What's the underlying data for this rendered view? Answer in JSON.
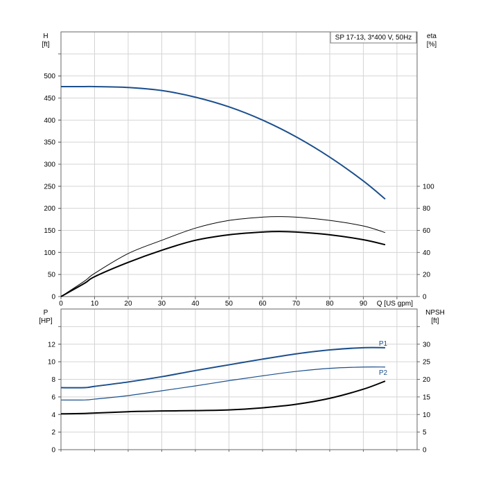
{
  "chart_data": [
    {
      "type": "line",
      "title": "SP 17-13, 3*400 V, 50Hz",
      "xlabel": "Q [US gpm]",
      "ylabel": "H",
      "ylabel_unit": "[ft]",
      "y2label": "eta",
      "y2label_unit": "[%]",
      "xlim": [
        0,
        106
      ],
      "ylim": [
        0,
        600
      ],
      "y2lim": [
        0,
        240
      ],
      "x_ticks": [
        0,
        10,
        20,
        30,
        40,
        50,
        60,
        70,
        80,
        90
      ],
      "y_ticks": [
        0,
        50,
        100,
        150,
        200,
        250,
        300,
        350,
        400,
        450,
        500
      ],
      "y2_ticks": [
        0,
        20,
        40,
        60,
        80,
        100
      ],
      "grid": true,
      "colors": {
        "head": "#1b4f8c",
        "eta": "#000000"
      },
      "series": [
        {
          "axis": "y",
          "x": [
            0,
            7,
            10,
            20,
            30,
            40,
            50,
            60,
            70,
            80,
            90,
            96.5
          ],
          "y": [
            476,
            476,
            476,
            474,
            467,
            452,
            430,
            400,
            362,
            316,
            262,
            221
          ]
        },
        {
          "axis": "y2",
          "x": [
            0,
            7,
            10,
            20,
            30,
            40,
            50,
            60,
            65,
            70,
            80,
            90,
            96.5
          ],
          "y": [
            0,
            14,
            21,
            39,
            51,
            62,
            69,
            72,
            72.5,
            72,
            69,
            64,
            58
          ]
        },
        {
          "axis": "y2",
          "x": [
            0,
            7,
            10,
            20,
            30,
            40,
            50,
            60,
            65,
            70,
            80,
            90,
            96.5
          ],
          "y": [
            0,
            12,
            18,
            31,
            42,
            51,
            56,
            58.5,
            59,
            58.5,
            56,
            51.5,
            47
          ]
        }
      ]
    },
    {
      "type": "line",
      "ylabel": "P",
      "ylabel_unit": "[HP]",
      "y2label": "NPSH",
      "y2label_unit": "[ft]",
      "xlim": [
        0,
        106
      ],
      "ylim": [
        0,
        16
      ],
      "y2lim": [
        0,
        40
      ],
      "y_ticks": [
        0,
        2,
        4,
        6,
        8,
        10,
        12
      ],
      "y2_ticks": [
        0,
        5,
        10,
        15,
        20,
        25,
        30
      ],
      "grid": true,
      "colors": {
        "power": "#1b4f8c",
        "npsh": "#000000"
      },
      "series": [
        {
          "name": "P1",
          "axis": "y",
          "x": [
            0,
            7,
            10,
            20,
            30,
            40,
            50,
            60,
            70,
            80,
            90,
            96.5
          ],
          "y": [
            7.05,
            7.05,
            7.2,
            7.7,
            8.3,
            9.0,
            9.65,
            10.3,
            10.9,
            11.35,
            11.6,
            11.6
          ]
        },
        {
          "name": "P2",
          "axis": "y",
          "x": [
            0,
            7,
            10,
            20,
            30,
            40,
            50,
            60,
            70,
            80,
            90,
            96.5
          ],
          "y": [
            5.65,
            5.65,
            5.75,
            6.15,
            6.7,
            7.25,
            7.85,
            8.4,
            8.9,
            9.25,
            9.4,
            9.4
          ]
        },
        {
          "axis": "y2",
          "x": [
            0,
            7,
            20,
            30,
            40,
            50,
            60,
            70,
            80,
            90,
            96.5
          ],
          "y": [
            10.2,
            10.3,
            10.8,
            11.0,
            11.1,
            11.3,
            11.9,
            12.9,
            14.6,
            17.2,
            19.5
          ]
        }
      ]
    }
  ]
}
